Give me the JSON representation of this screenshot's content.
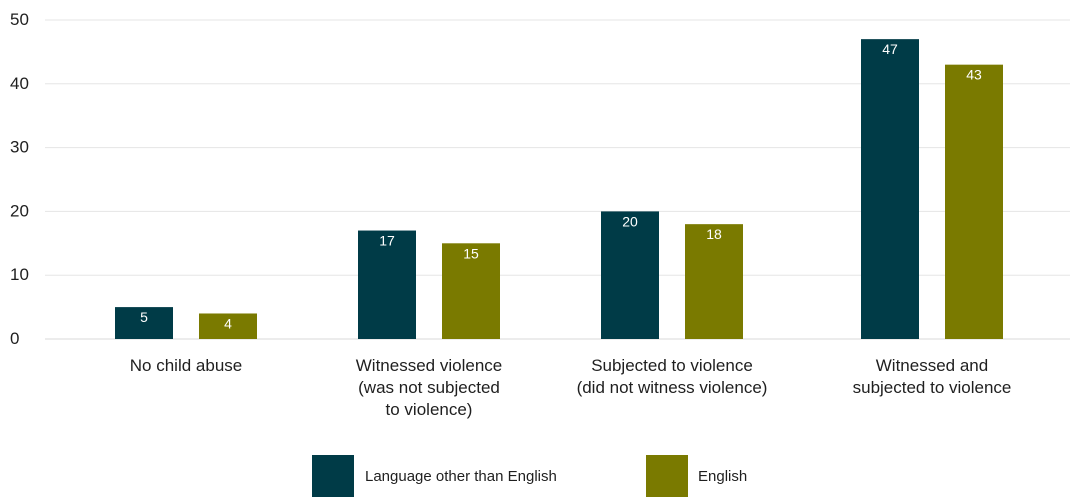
{
  "chart_data": {
    "type": "bar",
    "categories": [
      [
        "No child abuse"
      ],
      [
        "Witnessed violence",
        "(was not subjected",
        "to violence)"
      ],
      [
        "Subjected to violence",
        "(did not witness violence)"
      ],
      [
        "Witnessed and",
        "subjected to violence"
      ]
    ],
    "series": [
      {
        "name": "Language other than English",
        "color": "#003b47",
        "values": [
          5,
          17,
          20,
          47
        ]
      },
      {
        "name": "English",
        "color": "#7a7a00",
        "values": [
          4,
          15,
          18,
          43
        ]
      }
    ],
    "ylim": [
      0,
      50
    ],
    "yticks": [
      0,
      10,
      20,
      30,
      40,
      50
    ],
    "grid": true,
    "legend_position": "bottom"
  }
}
